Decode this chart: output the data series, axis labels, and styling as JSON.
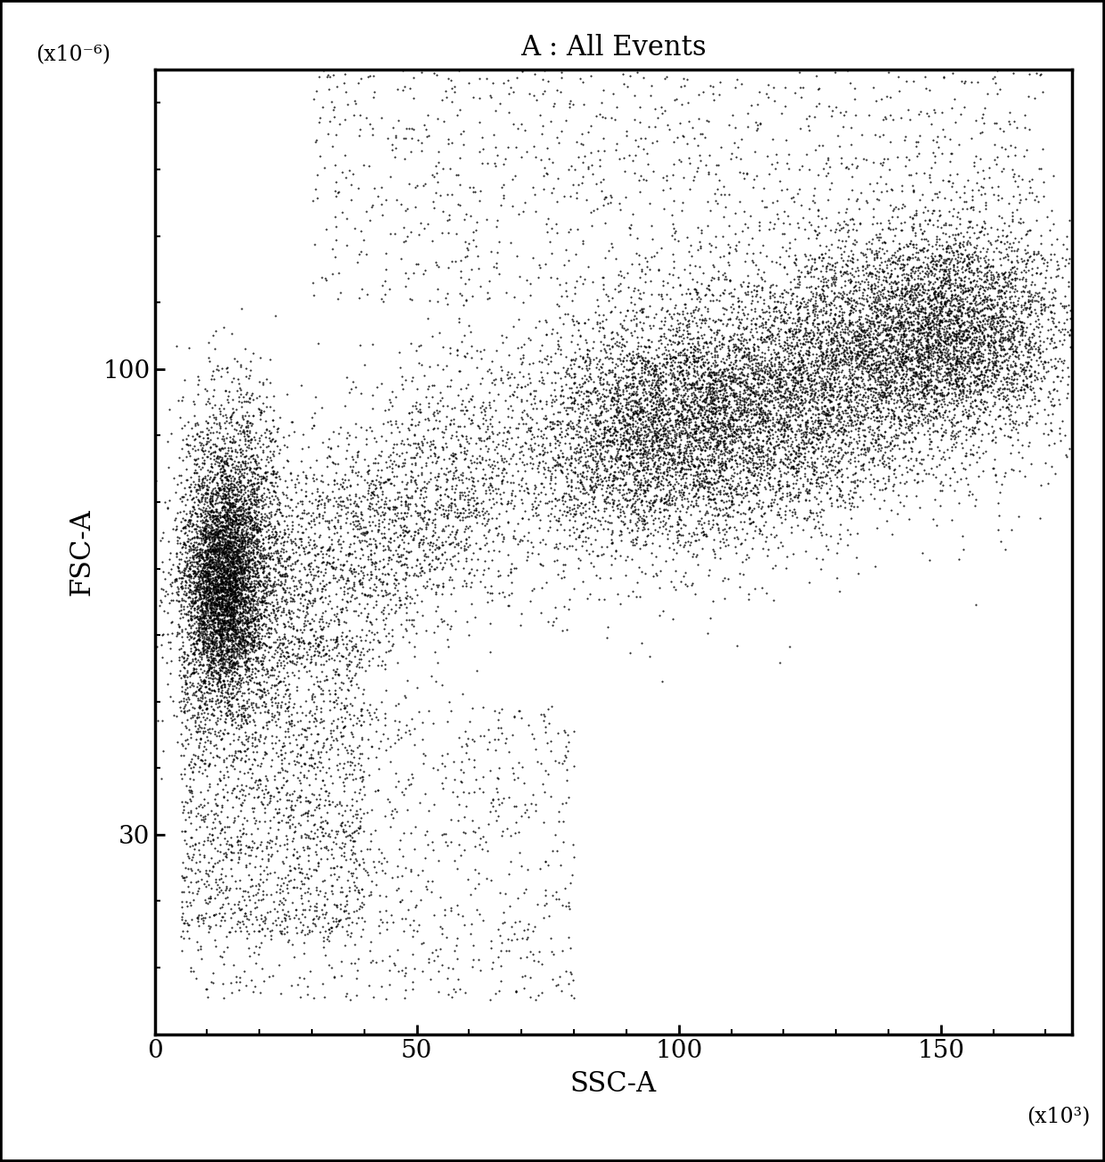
{
  "title": "A : All Events",
  "xlabel": "SSC-A",
  "ylabel": "FSC-A",
  "x_unit_label": "(x10³)",
  "y_unit_label": "(x10⁻⁶)",
  "xlim": [
    0,
    175
  ],
  "ylim": [
    0,
    145
  ],
  "xticks": [
    0,
    50,
    100,
    150
  ],
  "ytick_values": [
    30,
    100
  ],
  "ytick_labels": [
    "30",
    "100"
  ],
  "dot_color": "#000000",
  "dot_size": 2.5,
  "alpha": 0.85,
  "background_color": "#ffffff",
  "border_color": "#000000",
  "figsize": [
    12.4,
    13.03
  ],
  "dpi": 100
}
